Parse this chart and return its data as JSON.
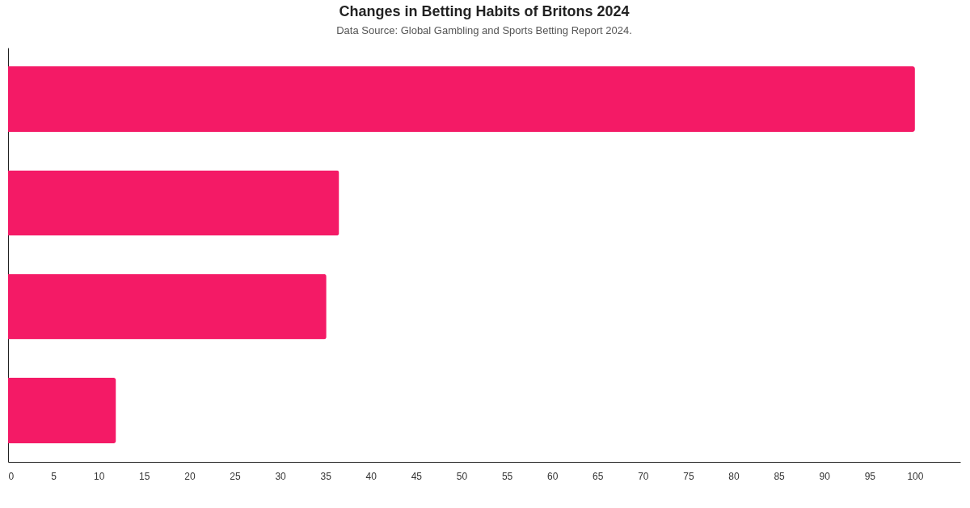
{
  "chart_data": {
    "type": "bar",
    "orientation": "horizontal",
    "title": "Changes in Betting Habits of Britons 2024",
    "subtitle": "Data Source: Global Gambling and Sports Betting Report 2024.",
    "categories": [
      null,
      null,
      null,
      null
    ],
    "values": [
      100,
      36.5,
      35.1,
      11.9
    ],
    "color": "#f41a66",
    "xlim": [
      0,
      105
    ],
    "xticks": [
      0,
      5,
      10,
      15,
      20,
      25,
      30,
      35,
      40,
      45,
      50,
      55,
      60,
      65,
      70,
      75,
      80,
      85,
      90,
      95,
      100
    ],
    "grid": false
  }
}
